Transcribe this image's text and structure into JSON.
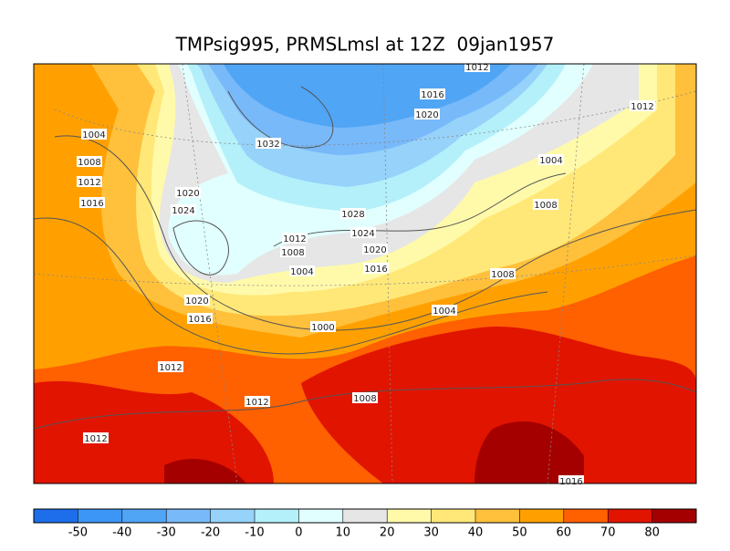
{
  "header": {
    "title": "TMPsig995, PRMSLmsl at 12Z  09jan1957"
  },
  "map": {
    "contour_labels": [
      "1012",
      "1016",
      "1020",
      "1012",
      "1004",
      "1008",
      "1012",
      "1016",
      "1032",
      "1004",
      "1020",
      "1024",
      "1008",
      "1028",
      "1024",
      "1012",
      "1020",
      "1008",
      "1016",
      "1004",
      "1008",
      "1020",
      "1016",
      "1004",
      "1000",
      "1012",
      "1012",
      "1008",
      "1012",
      "1016"
    ]
  },
  "colorbar": {
    "ticks": [
      -50,
      -40,
      -30,
      -20,
      -10,
      0,
      10,
      20,
      30,
      40,
      50,
      60,
      70,
      80
    ],
    "colors": [
      "#1e6eeb",
      "#3c96f5",
      "#50a5f5",
      "#78b9fa",
      "#96d2fa",
      "#b4f0fa",
      "#e1ffff",
      "#e6e6e6",
      "#fffaaa",
      "#ffe878",
      "#ffc03c",
      "#ffa000",
      "#ff6000",
      "#e11400",
      "#a50000"
    ]
  }
}
